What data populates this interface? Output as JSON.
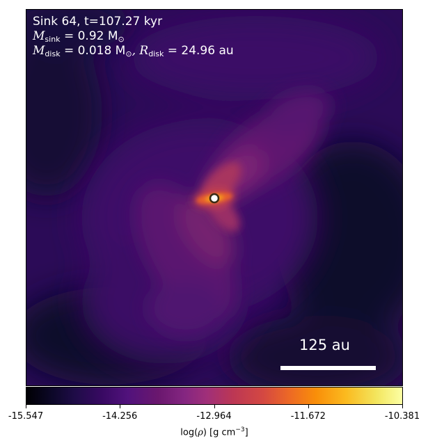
{
  "annotation": {
    "sink_line": "Sink 64, t=107.27 kyr",
    "m_sink_symbol": "M",
    "m_sink_subscript": "sink",
    "m_sink_value": " = 0.92 M",
    "m_sink_unit_subscript": "⊙",
    "m_disk_symbol": "M",
    "m_disk_subscript": "disk",
    "m_disk_value": " = 0.018 M",
    "m_disk_unit_subscript": "⊙",
    "r_disk_symbol": ", R",
    "r_disk_subscript": "disk",
    "r_disk_value": " = 24.96 au"
  },
  "scalebar": {
    "label": "125 au",
    "length_au": 125
  },
  "colorbar": {
    "min": -15.547,
    "max": -10.381,
    "ticks": [
      "-15.547",
      "-14.256",
      "-12.964",
      "-11.672",
      "-10.381"
    ],
    "label_prefix": "log(",
    "label_symbol": "ρ",
    "label_suffix": ") [g cm",
    "label_exponent": "−3",
    "label_close": "]",
    "colormap": "inferno"
  },
  "colors": {
    "sink_ring": "#3a2a14",
    "sink_fill": "#ffffff",
    "background_low": "#0e0a2a",
    "filament": "#8a2a7a",
    "disk_hot": "#f07a24"
  }
}
